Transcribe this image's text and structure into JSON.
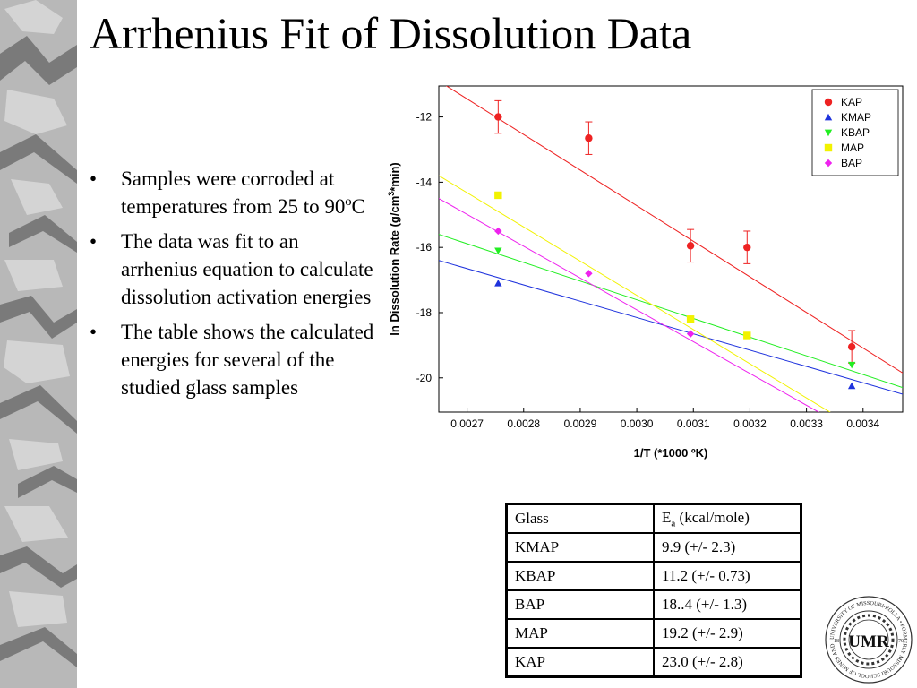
{
  "slide": {
    "title": "Arrhenius Fit of Dissolution Data",
    "bullet_marker": "•",
    "bullets": [
      "Samples were corroded at temperatures from 25 to 90ºC",
      "The data was fit to an arrhenius equation to calculate dissolution activation energies",
      "The table shows the calculated energies for several of the studied glass samples"
    ]
  },
  "chart_data": {
    "type": "scatter",
    "title": "",
    "xlabel": "1/T (*1000 ºK)",
    "ylabel_parts": [
      "ln Dissolution Rate (g/cm",
      "3",
      "*min)"
    ],
    "xlim": [
      0.00265,
      0.00347
    ],
    "ylim": [
      -21.05,
      -11.05
    ],
    "xticks": [
      "0.0027",
      "0.0028",
      "0.0029",
      "0.0030",
      "0.0031",
      "0.0032",
      "0.0033",
      "0.0034"
    ],
    "yticks": [
      "-12",
      "-14",
      "-16",
      "-18",
      "-20"
    ],
    "grid": false,
    "legend_position": "top-right",
    "series": [
      {
        "name": "KAP",
        "color": "#ee2222",
        "marker": "circle",
        "x": [
          0.002755,
          0.002915,
          0.003095,
          0.003195,
          0.00338
        ],
        "y": [
          -12.0,
          -12.65,
          -15.95,
          -16.0,
          -19.05
        ],
        "err": [
          0.5,
          0.5,
          0.5,
          0.5,
          0.5
        ],
        "fit": [
          [
            0.00265,
            -10.9
          ],
          [
            0.00347,
            -19.85
          ]
        ]
      },
      {
        "name": "KMAP",
        "color": "#1f33dd",
        "marker": "triangle-up",
        "x": [
          0.002755,
          0.00338
        ],
        "y": [
          -17.1,
          -20.25
        ],
        "fit": [
          [
            0.00265,
            -16.4
          ],
          [
            0.00347,
            -20.5
          ]
        ]
      },
      {
        "name": "KBAP",
        "color": "#22ee22",
        "marker": "triangle-down",
        "x": [
          0.002755,
          0.00338
        ],
        "y": [
          -16.1,
          -19.6
        ],
        "fit": [
          [
            0.00265,
            -15.6
          ],
          [
            0.00347,
            -20.3
          ]
        ]
      },
      {
        "name": "MAP",
        "color": "#f2f200",
        "marker": "square",
        "x": [
          0.002755,
          0.003095,
          0.003195
        ],
        "y": [
          -14.4,
          -18.2,
          -18.7
        ],
        "fit": [
          [
            0.00265,
            -13.8
          ],
          [
            0.00347,
            -22.4
          ]
        ]
      },
      {
        "name": "BAP",
        "color": "#ee22ee",
        "marker": "diamond",
        "x": [
          0.002755,
          0.002915,
          0.003095
        ],
        "y": [
          -15.5,
          -16.8,
          -18.65
        ],
        "fit": [
          [
            0.00265,
            -14.5
          ],
          [
            0.00347,
            -22.5
          ]
        ]
      }
    ]
  },
  "table": {
    "header": {
      "glass": "Glass",
      "ea_main": "E",
      "ea_sub": "a",
      "ea_rest": " (kcal/mole)"
    },
    "rows": [
      {
        "glass": "KMAP",
        "ea": "9.9 (+/- 2.3)"
      },
      {
        "glass": "KBAP",
        "ea": "11.2 (+/- 0.73)"
      },
      {
        "glass": "BAP",
        "ea": "18..4 (+/- 1.3)"
      },
      {
        "glass": "MAP",
        "ea": "19.2 (+/- 2.9)"
      },
      {
        "glass": "KAP",
        "ea": "23.0 (+/- 2.8)"
      }
    ]
  },
  "seal": {
    "ring_text": "UNIVERSITY OF MISSOURI-ROLLA • FORMERLY MISSOURI SCHOOL OF MINES AND METALLURGY •",
    "monogram": "UMR",
    "year_left": "18",
    "year_right": "70"
  }
}
